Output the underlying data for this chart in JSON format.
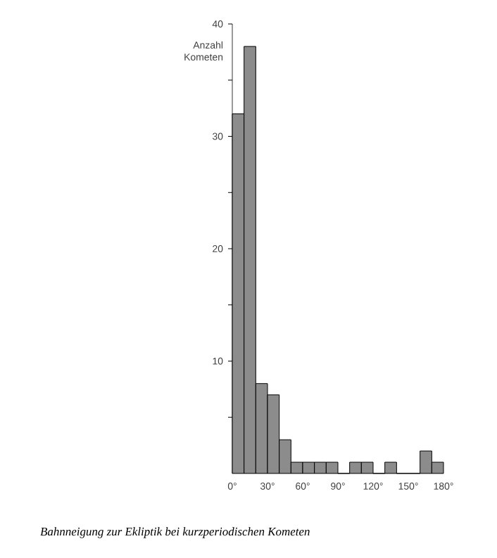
{
  "chart_data": {
    "type": "histogram",
    "ylabel": "Anzahl Kometen",
    "bins": [
      0,
      10,
      20,
      30,
      40,
      50,
      60,
      70,
      80,
      90,
      100,
      110,
      120,
      130,
      140,
      150,
      160,
      170,
      180
    ],
    "values": [
      32,
      38,
      8,
      7,
      3,
      1,
      1,
      1,
      1,
      0,
      1,
      1,
      0,
      1,
      0,
      0,
      2,
      1
    ],
    "color": "#8c8c8c",
    "xlim": [
      0,
      180
    ],
    "xticks": [
      {
        "value": 0,
        "label": "0°"
      },
      {
        "value": 30,
        "label": "30°"
      },
      {
        "value": 60,
        "label": "60°"
      },
      {
        "value": 90,
        "label": "90°"
      },
      {
        "value": 120,
        "label": "120°"
      },
      {
        "value": 150,
        "label": "150°"
      },
      {
        "value": 180,
        "label": "180°"
      }
    ],
    "ylim": [
      0,
      40
    ],
    "yticks": [
      {
        "value": 5,
        "label": null
      },
      10,
      {
        "value": 15,
        "label": null
      },
      20,
      {
        "value": 25,
        "label": null
      },
      30,
      {
        "value": 35,
        "label": null
      },
      40
    ],
    "annotations": [
      "Bahnneigung zur Ekliptik bei kurzperiodischen Kometen"
    ]
  }
}
